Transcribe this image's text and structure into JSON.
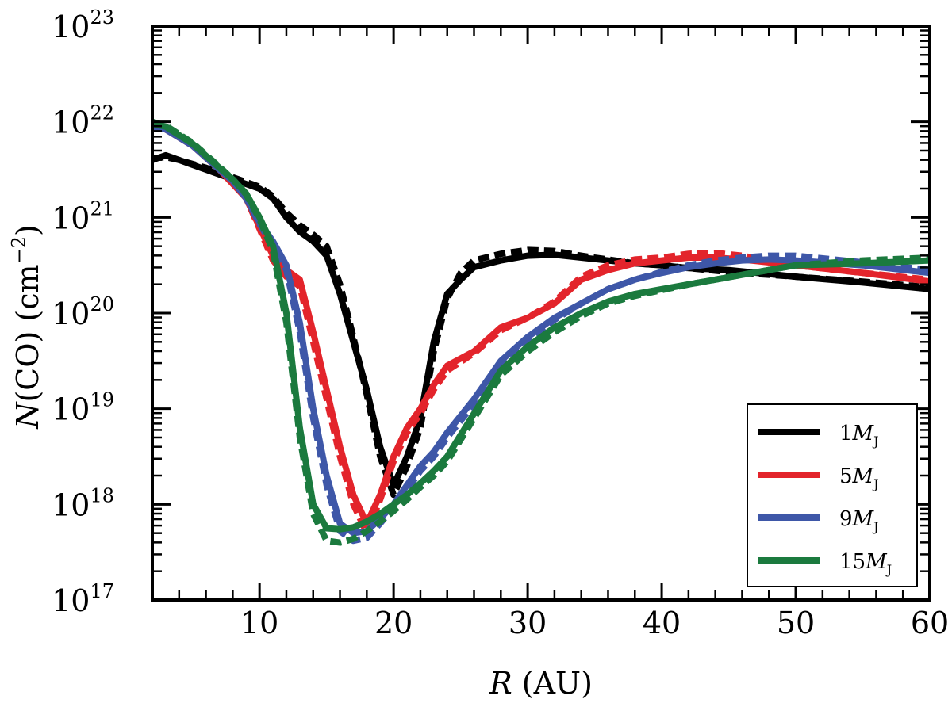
{
  "chart_data": {
    "type": "line",
    "xlabel": {
      "var": "R",
      "unit": " (AU)"
    },
    "ylabel": {
      "var": "N",
      "text": "(CO) (cm",
      "exp": "−2",
      "close": ")"
    },
    "xlim": [
      2,
      60
    ],
    "ylim": [
      1e+17,
      1e+23
    ],
    "yscale": "log",
    "xticks": [
      10,
      20,
      30,
      40,
      50,
      60
    ],
    "xtick_labels": [
      "10",
      "20",
      "30",
      "40",
      "50",
      "60"
    ],
    "yticks": [
      {
        "base": "10",
        "exp": "17"
      },
      {
        "base": "10",
        "exp": "18"
      },
      {
        "base": "10",
        "exp": "19"
      },
      {
        "base": "10",
        "exp": "20"
      },
      {
        "base": "10",
        "exp": "21"
      },
      {
        "base": "10",
        "exp": "22"
      },
      {
        "base": "10",
        "exp": "23"
      }
    ],
    "legend_position": "bottom-right",
    "series": [
      {
        "name": "1 M_J",
        "label": {
          "num": "1",
          "sym": "M",
          "sub": "J"
        },
        "color": "#000000",
        "solid": [
          [
            2,
            21.6
          ],
          [
            3,
            21.65
          ],
          [
            4,
            21.6
          ],
          [
            6,
            21.5
          ],
          [
            8,
            21.4
          ],
          [
            10,
            21.3
          ],
          [
            11,
            21.2
          ],
          [
            12,
            21.0
          ],
          [
            13,
            20.85
          ],
          [
            14,
            20.75
          ],
          [
            15,
            20.6
          ],
          [
            16,
            20.2
          ],
          [
            17,
            19.7
          ],
          [
            18,
            19.2
          ],
          [
            19,
            18.6
          ],
          [
            20,
            18.2
          ],
          [
            21,
            18.5
          ],
          [
            22,
            18.9
          ],
          [
            23,
            19.7
          ],
          [
            24,
            20.2
          ],
          [
            25,
            20.35
          ],
          [
            26,
            20.48
          ],
          [
            28,
            20.55
          ],
          [
            30,
            20.6
          ],
          [
            32,
            20.61
          ],
          [
            34,
            20.58
          ],
          [
            36,
            20.55
          ],
          [
            38,
            20.52
          ],
          [
            40,
            20.5
          ],
          [
            42,
            20.47
          ],
          [
            45,
            20.45
          ],
          [
            50,
            20.38
          ],
          [
            55,
            20.32
          ],
          [
            60,
            20.25
          ]
        ],
        "dashed": [
          [
            2,
            21.62
          ],
          [
            3,
            21.63
          ],
          [
            4,
            21.6
          ],
          [
            6,
            21.52
          ],
          [
            8,
            21.42
          ],
          [
            10,
            21.32
          ],
          [
            11,
            21.22
          ],
          [
            12,
            21.05
          ],
          [
            13,
            20.92
          ],
          [
            14,
            20.82
          ],
          [
            15,
            20.7
          ],
          [
            16,
            20.3
          ],
          [
            17,
            19.75
          ],
          [
            18,
            19.15
          ],
          [
            19,
            18.5
          ],
          [
            20,
            18.1
          ],
          [
            21,
            18.4
          ],
          [
            22,
            18.8
          ],
          [
            23,
            19.6
          ],
          [
            24,
            20.15
          ],
          [
            25,
            20.42
          ],
          [
            26,
            20.55
          ],
          [
            28,
            20.62
          ],
          [
            30,
            20.66
          ],
          [
            32,
            20.65
          ],
          [
            34,
            20.6
          ],
          [
            36,
            20.56
          ],
          [
            38,
            20.52
          ],
          [
            40,
            20.5
          ],
          [
            42,
            20.47
          ],
          [
            45,
            20.43
          ],
          [
            50,
            20.38
          ],
          [
            55,
            20.33
          ],
          [
            60,
            20.27
          ]
        ]
      },
      {
        "name": "5 M_J",
        "label": {
          "num": "5",
          "sym": "M",
          "sub": "J"
        },
        "color": "#e3242b",
        "solid": [
          [
            2,
            21.95
          ],
          [
            3,
            21.92
          ],
          [
            5,
            21.75
          ],
          [
            7,
            21.5
          ],
          [
            8,
            21.35
          ],
          [
            9,
            21.2
          ],
          [
            10,
            20.9
          ],
          [
            11,
            20.6
          ],
          [
            12,
            20.45
          ],
          [
            13,
            20.35
          ],
          [
            14,
            19.8
          ],
          [
            15,
            19.2
          ],
          [
            16,
            18.6
          ],
          [
            17,
            18.1
          ],
          [
            18,
            17.8
          ],
          [
            19,
            18.1
          ],
          [
            20,
            18.5
          ],
          [
            21,
            18.8
          ],
          [
            22,
            19.0
          ],
          [
            23,
            19.25
          ],
          [
            24,
            19.45
          ],
          [
            26,
            19.6
          ],
          [
            28,
            19.85
          ],
          [
            30,
            19.95
          ],
          [
            32,
            20.1
          ],
          [
            34,
            20.35
          ],
          [
            36,
            20.45
          ],
          [
            38,
            20.52
          ],
          [
            40,
            20.55
          ],
          [
            42,
            20.58
          ],
          [
            44,
            20.58
          ],
          [
            46,
            20.56
          ],
          [
            48,
            20.53
          ],
          [
            50,
            20.5
          ],
          [
            55,
            20.42
          ],
          [
            60,
            20.33
          ]
        ],
        "dashed": [
          [
            2,
            21.97
          ],
          [
            3,
            21.93
          ],
          [
            5,
            21.76
          ],
          [
            7,
            21.52
          ],
          [
            8,
            21.36
          ],
          [
            9,
            21.2
          ],
          [
            10,
            20.88
          ],
          [
            11,
            20.55
          ],
          [
            12,
            20.38
          ],
          [
            13,
            20.28
          ],
          [
            14,
            19.7
          ],
          [
            15,
            19.1
          ],
          [
            16,
            18.5
          ],
          [
            17,
            18.0
          ],
          [
            18,
            17.7
          ],
          [
            19,
            18.05
          ],
          [
            20,
            18.45
          ],
          [
            21,
            18.75
          ],
          [
            22,
            18.95
          ],
          [
            23,
            19.2
          ],
          [
            24,
            19.4
          ],
          [
            26,
            19.58
          ],
          [
            28,
            19.82
          ],
          [
            30,
            19.95
          ],
          [
            32,
            20.12
          ],
          [
            34,
            20.38
          ],
          [
            36,
            20.5
          ],
          [
            38,
            20.56
          ],
          [
            40,
            20.58
          ],
          [
            42,
            20.62
          ],
          [
            44,
            20.63
          ],
          [
            46,
            20.6
          ],
          [
            48,
            20.55
          ],
          [
            50,
            20.5
          ],
          [
            55,
            20.42
          ],
          [
            60,
            20.35
          ]
        ]
      },
      {
        "name": "9 M_J",
        "label": {
          "num": "9",
          "sym": "M",
          "sub": "J"
        },
        "color": "#3e57a8",
        "solid": [
          [
            2,
            21.95
          ],
          [
            3,
            21.92
          ],
          [
            5,
            21.75
          ],
          [
            7,
            21.5
          ],
          [
            8,
            21.38
          ],
          [
            9,
            21.2
          ],
          [
            10,
            20.95
          ],
          [
            11,
            20.75
          ],
          [
            12,
            20.5
          ],
          [
            13,
            19.9
          ],
          [
            14,
            19.0
          ],
          [
            15,
            18.3
          ],
          [
            16,
            17.8
          ],
          [
            17,
            17.7
          ],
          [
            18,
            17.72
          ],
          [
            19,
            17.85
          ],
          [
            20,
            18.0
          ],
          [
            21,
            18.2
          ],
          [
            22,
            18.4
          ],
          [
            23,
            18.55
          ],
          [
            24,
            18.75
          ],
          [
            26,
            19.1
          ],
          [
            28,
            19.5
          ],
          [
            30,
            19.75
          ],
          [
            32,
            19.95
          ],
          [
            34,
            20.1
          ],
          [
            36,
            20.25
          ],
          [
            38,
            20.35
          ],
          [
            40,
            20.42
          ],
          [
            42,
            20.48
          ],
          [
            44,
            20.52
          ],
          [
            46,
            20.55
          ],
          [
            48,
            20.56
          ],
          [
            50,
            20.55
          ],
          [
            55,
            20.5
          ],
          [
            60,
            20.42
          ]
        ],
        "dashed": [
          [
            2,
            21.97
          ],
          [
            3,
            21.93
          ],
          [
            5,
            21.76
          ],
          [
            7,
            21.52
          ],
          [
            8,
            21.38
          ],
          [
            9,
            21.2
          ],
          [
            10,
            20.93
          ],
          [
            11,
            20.7
          ],
          [
            12,
            20.45
          ],
          [
            13,
            19.8
          ],
          [
            14,
            18.9
          ],
          [
            15,
            18.2
          ],
          [
            16,
            17.72
          ],
          [
            17,
            17.62
          ],
          [
            18,
            17.65
          ],
          [
            19,
            17.8
          ],
          [
            20,
            17.97
          ],
          [
            21,
            18.15
          ],
          [
            22,
            18.35
          ],
          [
            23,
            18.5
          ],
          [
            24,
            18.7
          ],
          [
            26,
            19.05
          ],
          [
            28,
            19.45
          ],
          [
            30,
            19.72
          ],
          [
            32,
            19.93
          ],
          [
            34,
            20.1
          ],
          [
            36,
            20.25
          ],
          [
            38,
            20.35
          ],
          [
            40,
            20.43
          ],
          [
            42,
            20.5
          ],
          [
            44,
            20.55
          ],
          [
            46,
            20.58
          ],
          [
            48,
            20.6
          ],
          [
            50,
            20.6
          ],
          [
            55,
            20.53
          ],
          [
            60,
            20.45
          ]
        ]
      },
      {
        "name": "15 M_J",
        "label": {
          "num": "15",
          "sym": "M",
          "sub": "J"
        },
        "color": "#1b7a3e",
        "solid": [
          [
            2,
            21.98
          ],
          [
            3,
            21.95
          ],
          [
            5,
            21.77
          ],
          [
            7,
            21.52
          ],
          [
            8,
            21.4
          ],
          [
            9,
            21.25
          ],
          [
            10,
            21.0
          ],
          [
            11,
            20.7
          ],
          [
            12,
            20.0
          ],
          [
            13,
            18.8
          ],
          [
            14,
            18.0
          ],
          [
            15,
            17.75
          ],
          [
            16,
            17.74
          ],
          [
            17,
            17.76
          ],
          [
            18,
            17.82
          ],
          [
            19,
            17.9
          ],
          [
            20,
            18.0
          ],
          [
            21,
            18.1
          ],
          [
            22,
            18.22
          ],
          [
            23,
            18.35
          ],
          [
            24,
            18.5
          ],
          [
            26,
            18.95
          ],
          [
            28,
            19.4
          ],
          [
            30,
            19.65
          ],
          [
            32,
            19.85
          ],
          [
            34,
            20.0
          ],
          [
            36,
            20.12
          ],
          [
            38,
            20.2
          ],
          [
            40,
            20.25
          ],
          [
            42,
            20.3
          ],
          [
            44,
            20.35
          ],
          [
            46,
            20.4
          ],
          [
            48,
            20.45
          ],
          [
            50,
            20.5
          ],
          [
            55,
            20.52
          ],
          [
            60,
            20.55
          ]
        ],
        "dashed": [
          [
            2,
            22.0
          ],
          [
            3,
            21.96
          ],
          [
            5,
            21.78
          ],
          [
            7,
            21.53
          ],
          [
            8,
            21.4
          ],
          [
            9,
            21.24
          ],
          [
            10,
            20.98
          ],
          [
            11,
            20.65
          ],
          [
            12,
            19.9
          ],
          [
            13,
            18.7
          ],
          [
            14,
            17.9
          ],
          [
            15,
            17.62
          ],
          [
            16,
            17.6
          ],
          [
            17,
            17.64
          ],
          [
            18,
            17.72
          ],
          [
            19,
            17.82
          ],
          [
            20,
            17.93
          ],
          [
            21,
            18.05
          ],
          [
            22,
            18.18
          ],
          [
            23,
            18.3
          ],
          [
            24,
            18.45
          ],
          [
            26,
            18.9
          ],
          [
            28,
            19.35
          ],
          [
            30,
            19.6
          ],
          [
            32,
            19.8
          ],
          [
            34,
            19.97
          ],
          [
            36,
            20.1
          ],
          [
            38,
            20.18
          ],
          [
            40,
            20.24
          ],
          [
            42,
            20.3
          ],
          [
            44,
            20.35
          ],
          [
            46,
            20.4
          ],
          [
            48,
            20.45
          ],
          [
            50,
            20.5
          ],
          [
            55,
            20.55
          ],
          [
            60,
            20.58
          ]
        ]
      }
    ]
  }
}
